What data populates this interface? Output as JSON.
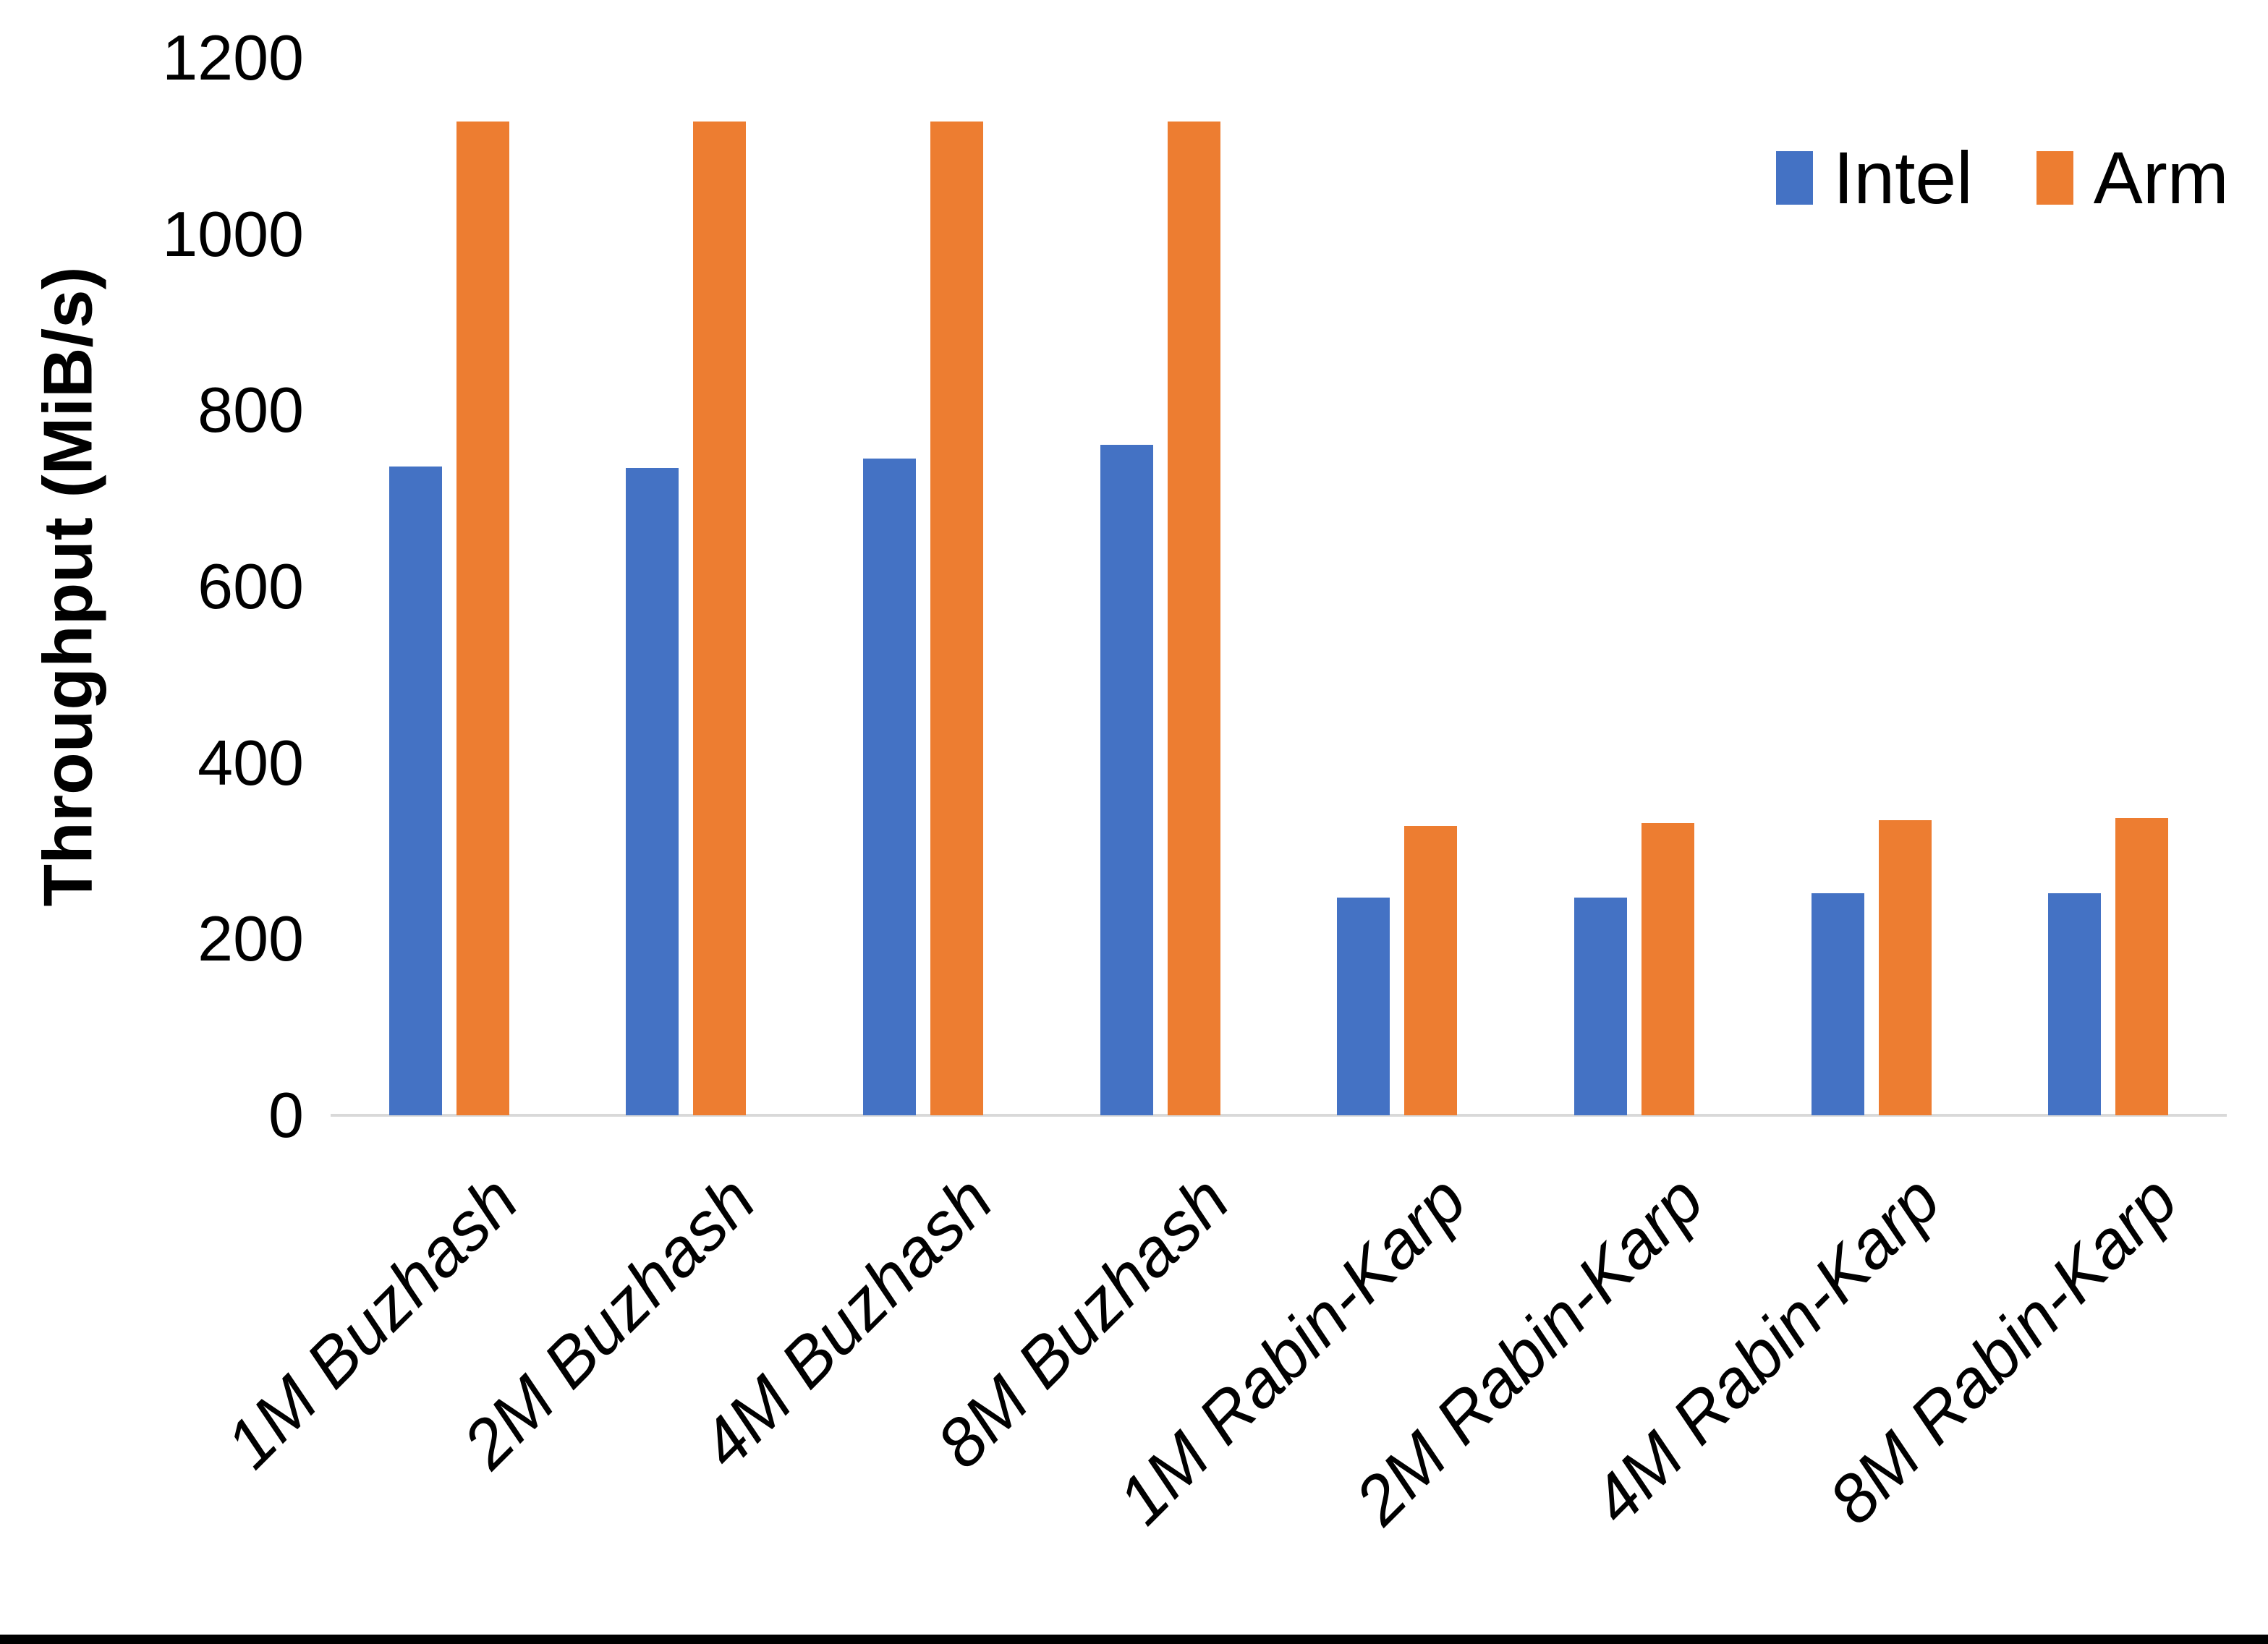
{
  "chart_data": {
    "type": "bar",
    "title": "",
    "xlabel": "",
    "ylabel": "Throughput (MiB/s)",
    "ylim": [
      0,
      1200
    ],
    "y_tick_step": 200,
    "y_tick_labels": [
      "0",
      "200",
      "400",
      "600",
      "800",
      "1000",
      "1200"
    ],
    "grid": false,
    "legend_position": "top-right",
    "axis_line_color": "#d9d9d9",
    "categories": [
      "1M Buzhash",
      "2M Buzhash",
      "4M Buzhash",
      "8M Buzhash",
      "1M Rabin-Karp",
      "2M Rabin-Karp",
      "4M Rabin-Karp",
      "8M Rabin-Karp"
    ],
    "series": [
      {
        "name": "Intel",
        "color": "#4472C4",
        "values": [
          736,
          735,
          745,
          761,
          247,
          247,
          252,
          252
        ]
      },
      {
        "name": "Arm",
        "color": "#ED7D31",
        "values": [
          1128,
          1128,
          1128,
          1128,
          328,
          332,
          335,
          337
        ]
      }
    ]
  },
  "page": {
    "background": "#ffffff",
    "bottom_edge_color": "#000000"
  }
}
